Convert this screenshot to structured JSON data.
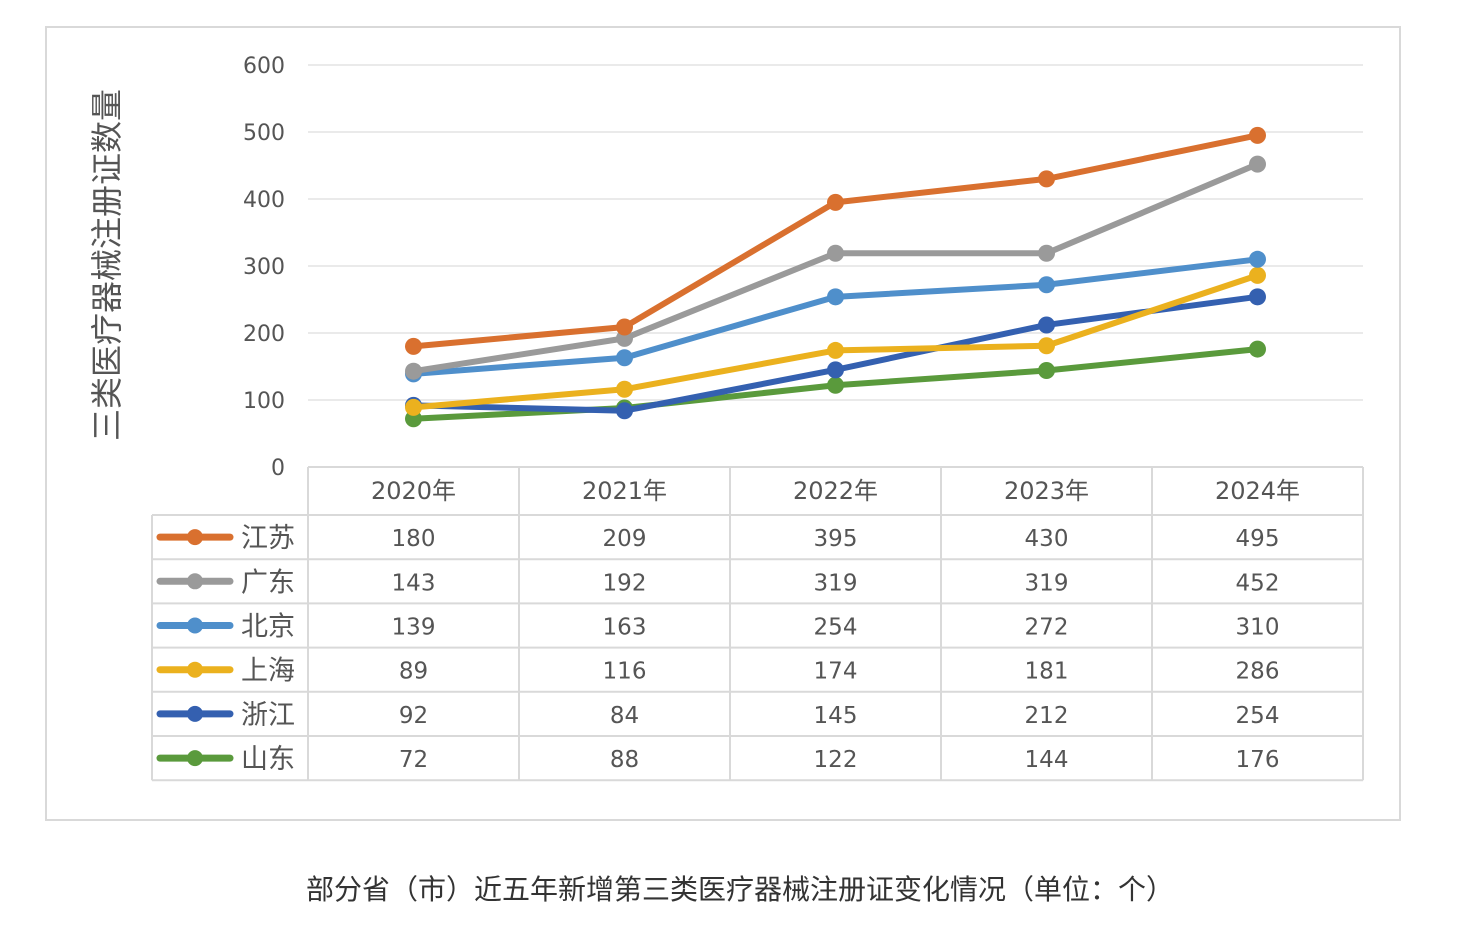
{
  "caption": "部分省（市）近五年新增第三类医疗器械注册证变化情况（单位：个）",
  "chart_data": {
    "type": "line",
    "title": "",
    "xlabel": "",
    "ylabel": "三类医疗器械注册证数量",
    "ylim": [
      0,
      600
    ],
    "yticks": [
      0,
      100,
      200,
      300,
      400,
      500,
      600
    ],
    "grid": true,
    "legend": "data-table-bottom",
    "categories": [
      "2020年",
      "2021年",
      "2022年",
      "2023年",
      "2024年"
    ],
    "series": [
      {
        "name": "江苏",
        "color": "#D9702F",
        "values": [
          180,
          209,
          395,
          430,
          495
        ]
      },
      {
        "name": "广东",
        "color": "#9A9A9A",
        "values": [
          143,
          192,
          319,
          319,
          452
        ]
      },
      {
        "name": "北京",
        "color": "#4F8FCB",
        "values": [
          139,
          163,
          254,
          272,
          310
        ]
      },
      {
        "name": "上海",
        "color": "#EBB11E",
        "values": [
          89,
          116,
          174,
          181,
          286
        ]
      },
      {
        "name": "浙江",
        "color": "#3460B0",
        "values": [
          92,
          84,
          145,
          212,
          254
        ]
      },
      {
        "name": "山东",
        "color": "#5A9A3C",
        "values": [
          72,
          88,
          122,
          144,
          176
        ]
      }
    ]
  }
}
